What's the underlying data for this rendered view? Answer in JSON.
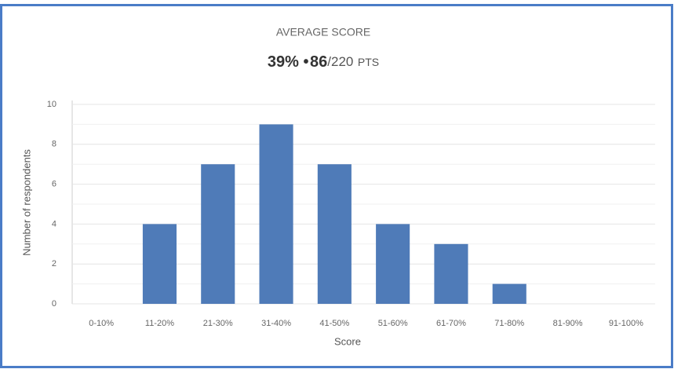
{
  "chart_data": {
    "type": "bar",
    "title": "AVERAGE SCORE",
    "headline": {
      "percent": "39%",
      "separator": "•",
      "points": "86",
      "total": "/220",
      "unit": "PTS"
    },
    "x_label": "Score",
    "y_label": "Number of respondents",
    "categories": [
      "0-10%",
      "11-20%",
      "21-30%",
      "31-40%",
      "41-50%",
      "51-60%",
      "61-70%",
      "71-80%",
      "81-90%",
      "91-100%"
    ],
    "values": [
      0,
      4,
      7,
      9,
      7,
      4,
      3,
      1,
      0,
      0
    ],
    "color": "#4f7bb8",
    "ylim": [
      0,
      10
    ],
    "yticks": [
      0,
      2,
      4,
      6,
      8,
      10
    ],
    "minor_yticks": [
      1,
      3,
      5,
      7,
      9
    ],
    "grid": true
  }
}
